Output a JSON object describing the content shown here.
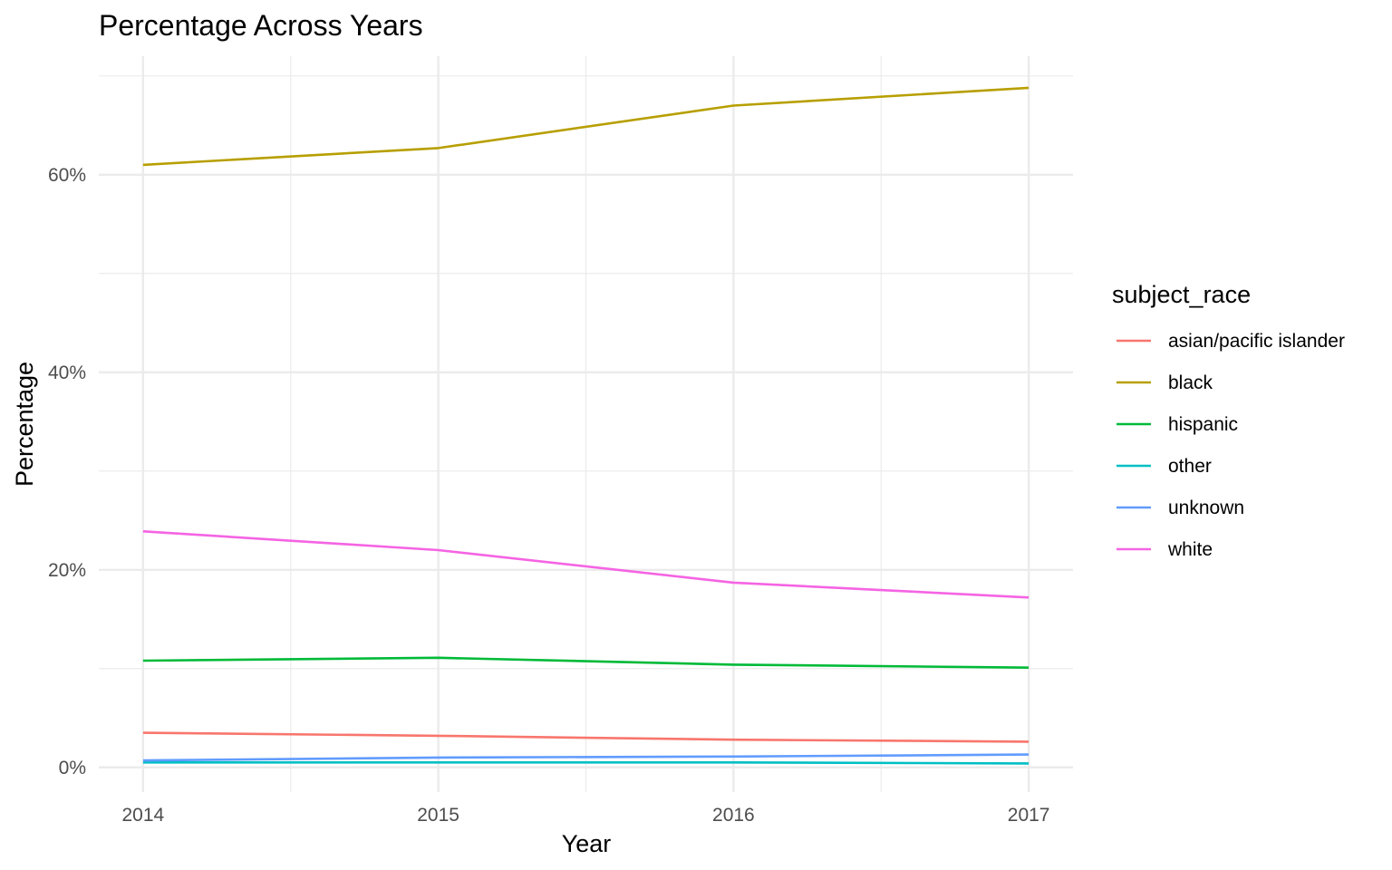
{
  "chart_data": {
    "type": "line",
    "title": "Percentage Across Years",
    "xlabel": "Year",
    "ylabel": "Percentage",
    "x": [
      2014,
      2015,
      2016,
      2017
    ],
    "x_ticks": [
      "2014",
      "2015",
      "2016",
      "2017"
    ],
    "xlim": [
      2013.85,
      2017.15
    ],
    "y_ticks": [
      0,
      20,
      40,
      60
    ],
    "y_tick_labels": [
      "0%",
      "20%",
      "40%",
      "60%"
    ],
    "ylim": [
      -2.5,
      72
    ],
    "grid": true,
    "legend": {
      "title": "subject_race",
      "position": "right"
    },
    "series": [
      {
        "name": "asian/pacific islander",
        "color": "#F8766D",
        "values": [
          3.5,
          3.2,
          2.8,
          2.6
        ]
      },
      {
        "name": "black",
        "color": "#B79F00",
        "values": [
          61.0,
          62.7,
          67.0,
          68.8
        ]
      },
      {
        "name": "hispanic",
        "color": "#00BA38",
        "values": [
          10.8,
          11.1,
          10.4,
          10.1
        ]
      },
      {
        "name": "other",
        "color": "#00BFC4",
        "values": [
          0.5,
          0.5,
          0.5,
          0.4
        ]
      },
      {
        "name": "unknown",
        "color": "#619CFF",
        "values": [
          0.7,
          1.0,
          1.1,
          1.3
        ]
      },
      {
        "name": "white",
        "color": "#F564E3",
        "values": [
          23.9,
          22.0,
          18.7,
          17.2
        ]
      }
    ]
  }
}
